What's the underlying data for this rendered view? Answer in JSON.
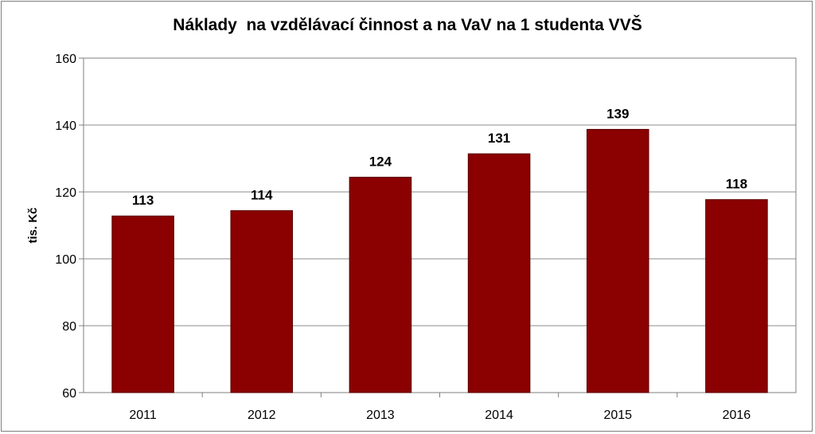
{
  "chart_data": {
    "type": "bar",
    "title": "Náklady  na vzdělávací činnost a na VaV na 1 studenta VVŠ",
    "xlabel": "",
    "ylabel": "tis. Kč",
    "categories": [
      "2011",
      "2012",
      "2013",
      "2014",
      "2015",
      "2016"
    ],
    "values": [
      113,
      114,
      124,
      131,
      139,
      118
    ],
    "bar_values": [
      112.8,
      114.4,
      124.4,
      131.4,
      138.7,
      117.7
    ],
    "ylim": [
      60,
      160
    ],
    "yticks": [
      "60",
      "80",
      "100",
      "120",
      "140",
      "160"
    ],
    "grid": true,
    "legend": "none",
    "colors": {
      "bar": "#8b0000",
      "grid": "#8c8c8c",
      "axis": "#7f7f7f"
    }
  }
}
